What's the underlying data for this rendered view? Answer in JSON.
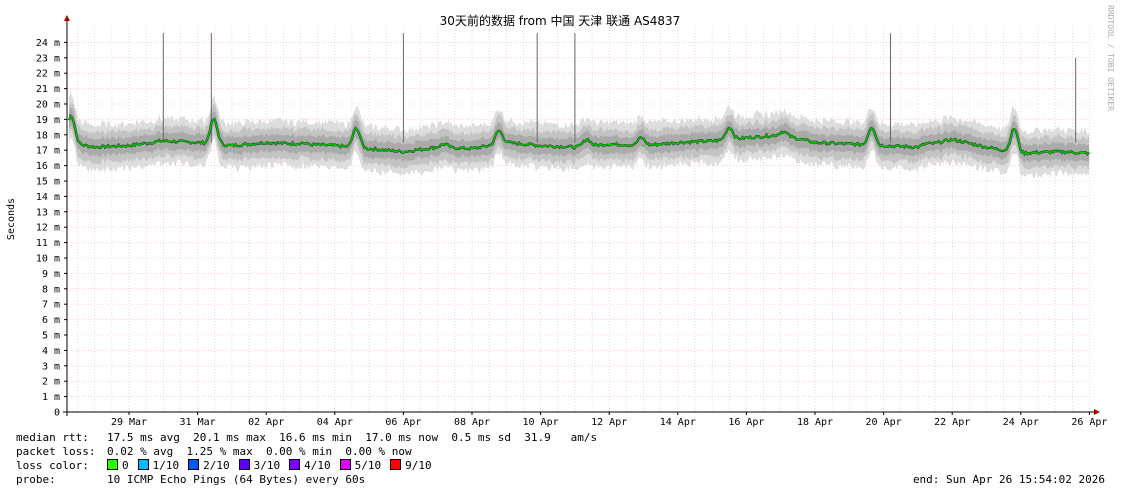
{
  "chart_data": {
    "type": "line",
    "title": "30天前的数据 from  中国 天津 联通 AS4837",
    "ylabel": "Seconds",
    "watermark": "RRDTOOL / TOBI OETIKER",
    "ylim": [
      0,
      25
    ],
    "y_ticks": [
      "0",
      "1 m",
      "2 m",
      "3 m",
      "4 m",
      "5 m",
      "6 m",
      "7 m",
      "8 m",
      "9 m",
      "10 m",
      "11 m",
      "12 m",
      "13 m",
      "14 m",
      "15 m",
      "16 m",
      "17 m",
      "18 m",
      "19 m",
      "20 m",
      "21 m",
      "22 m",
      "23 m",
      "24 m"
    ],
    "x_ticks": [
      "29 Mar",
      "31 Mar",
      "02 Apr",
      "04 Apr",
      "06 Apr",
      "08 Apr",
      "10 Apr",
      "12 Apr",
      "14 Apr",
      "16 Apr",
      "18 Apr",
      "20 Apr",
      "22 Apr",
      "24 Apr",
      "26 Apr"
    ],
    "grid": true,
    "colors": {
      "median": "#00cc00",
      "smoke": "#999999",
      "grid_minor": "#ffaaaa",
      "axis": "#000000",
      "arrow": "#aa0000"
    },
    "series": [
      {
        "x": [
          "27 Mar",
          "28 Mar",
          "29 Mar",
          "30 Mar",
          "31 Mar",
          "01 Apr",
          "02 Apr",
          "03 Apr",
          "04 Apr",
          "05 Apr",
          "06 Apr",
          "07 Apr",
          "08 Apr",
          "09 Apr",
          "10 Apr",
          "11 Apr",
          "12 Apr",
          "13 Apr",
          "14 Apr",
          "15 Apr",
          "16 Apr",
          "17 Apr",
          "18 Apr",
          "19 Apr",
          "20 Apr",
          "21 Apr",
          "22 Apr",
          "23 Apr",
          "24 Apr",
          "25 Apr",
          "26 Apr"
        ],
        "values": [
          17.6,
          17.2,
          17.3,
          17.6,
          17.5,
          17.3,
          17.5,
          17.4,
          17.3,
          17.1,
          16.9,
          17.2,
          17.1,
          17.5,
          17.3,
          17.2,
          17.4,
          17.3,
          17.5,
          17.6,
          17.8,
          18.0,
          17.5,
          17.4,
          17.3,
          17.2,
          17.7,
          17.2,
          16.8,
          16.9,
          16.8
        ]
      }
    ]
  },
  "legend": {
    "median_label": "median rtt:",
    "median_values": "17.5 ms avg  20.1 ms max  16.6 ms min  17.0 ms now  0.5 ms sd  31.9   am/s",
    "packet_label": "packet loss:",
    "packet_values": "0.02 % avg  1.25 % max  0.00 % min  0.00 % now",
    "loss_label": "loss color:",
    "loss_colors": [
      {
        "label": "0",
        "color": "#26ff00"
      },
      {
        "label": "1/10",
        "color": "#00b8ff"
      },
      {
        "label": "2/10",
        "color": "#0059ff"
      },
      {
        "label": "3/10",
        "color": "#5e00ff"
      },
      {
        "label": "4/10",
        "color": "#7e00ff"
      },
      {
        "label": "5/10",
        "color": "#dd00ff"
      },
      {
        "label": "9/10",
        "color": "#ff0000"
      }
    ],
    "probe_label": "probe:",
    "probe_value": "10 ICMP Echo Pings (64 Bytes) every 60s",
    "end_text": "end: Sun Apr 26 15:54:02 2026"
  }
}
